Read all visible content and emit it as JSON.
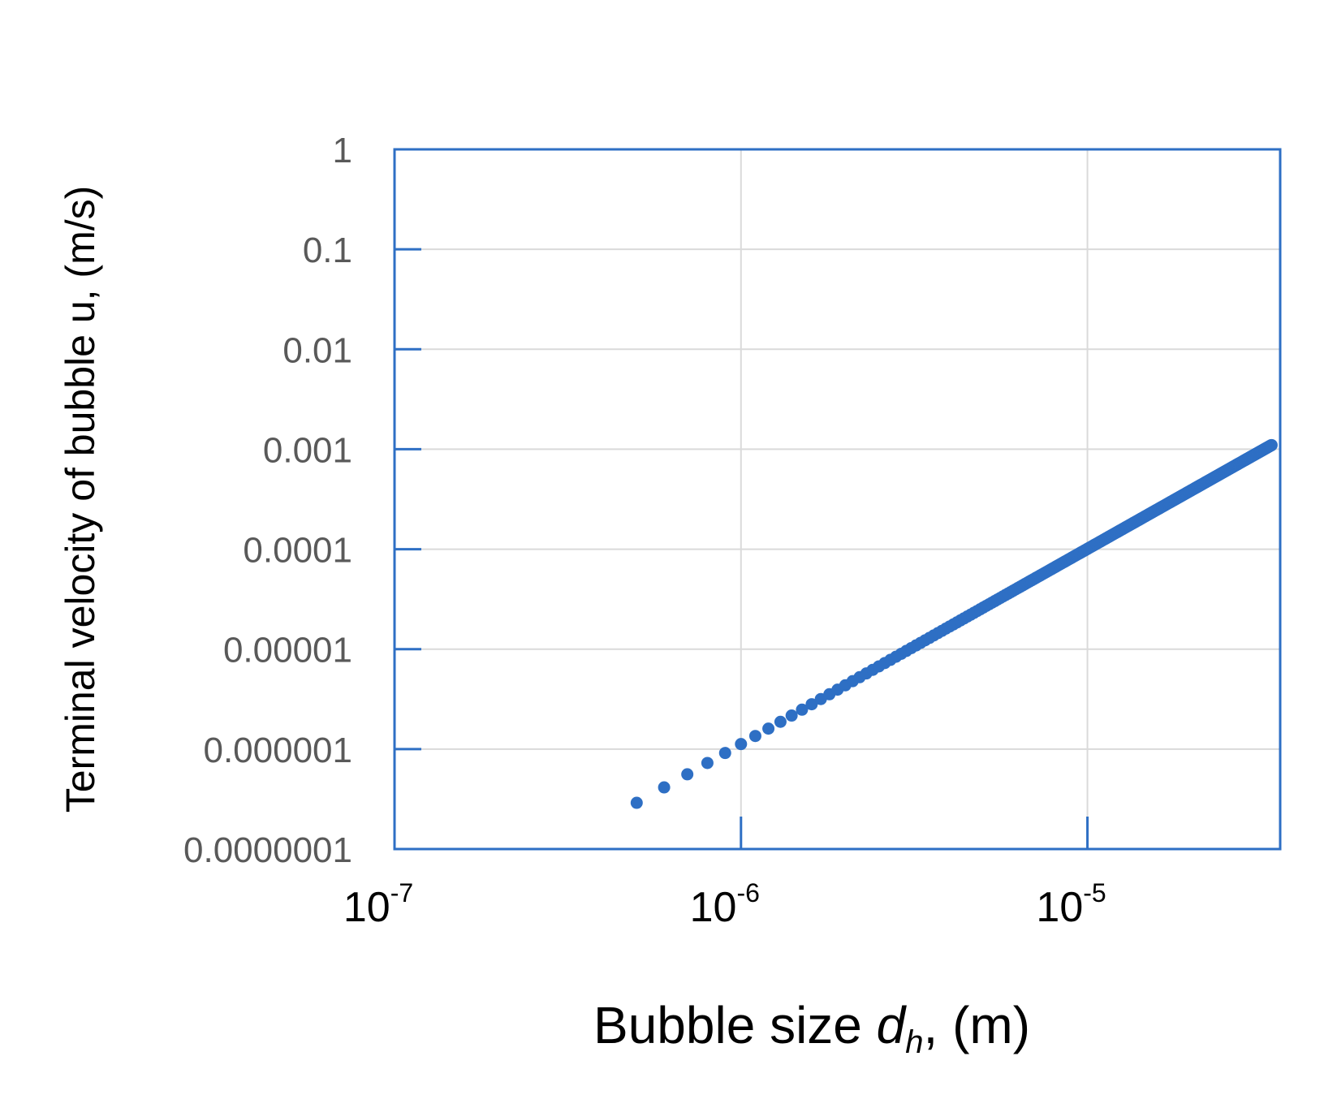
{
  "chart_data": {
    "type": "scatter",
    "title": "",
    "xlabel": {
      "prefix": "Bubble size ",
      "symbol": "d",
      "subscript": "h",
      "suffix": ", (m)"
    },
    "ylabel": "Terminal velocity of bubble  u, (m/s)",
    "x_scale": "log",
    "y_scale": "log",
    "xlim": [
      1e-07,
      3.6e-05
    ],
    "ylim": [
      1e-07,
      1
    ],
    "x_ticks": [
      {
        "value": 1e-07,
        "base": "10",
        "exp": "-7"
      },
      {
        "value": 1e-06,
        "base": "10",
        "exp": "-6"
      },
      {
        "value": 1e-05,
        "base": "10",
        "exp": "-5"
      }
    ],
    "y_ticks": [
      {
        "value": 1,
        "label": "1"
      },
      {
        "value": 0.1,
        "label": "0.1"
      },
      {
        "value": 0.01,
        "label": "0.01"
      },
      {
        "value": 0.001,
        "label": "0.001"
      },
      {
        "value": 0.0001,
        "label": "0.0001"
      },
      {
        "value": 1e-05,
        "label": "0.00001"
      },
      {
        "value": 1e-06,
        "label": "0.000001"
      },
      {
        "value": 1e-07,
        "label": "0.0000001"
      }
    ],
    "grid": true,
    "legend": "none",
    "series": [
      {
        "color": "#2E6FC4",
        "x_range": [
          5e-07,
          3.4e-05
        ],
        "y_range": [
          2.9e-07,
          0.0011
        ],
        "relation": "u proportional to d_h^2",
        "sample_points": [
          {
            "x": 5e-07,
            "y": 2.9e-07
          },
          {
            "x": 1e-06,
            "y": 1e-06
          },
          {
            "x": 1e-05,
            "y": 0.0001
          },
          {
            "x": 3.4e-05,
            "y": 0.0011
          }
        ]
      }
    ]
  },
  "colors": {
    "axis": "#2E6FC4",
    "grid": "#DADADA",
    "marker": "#2E6FC4"
  }
}
